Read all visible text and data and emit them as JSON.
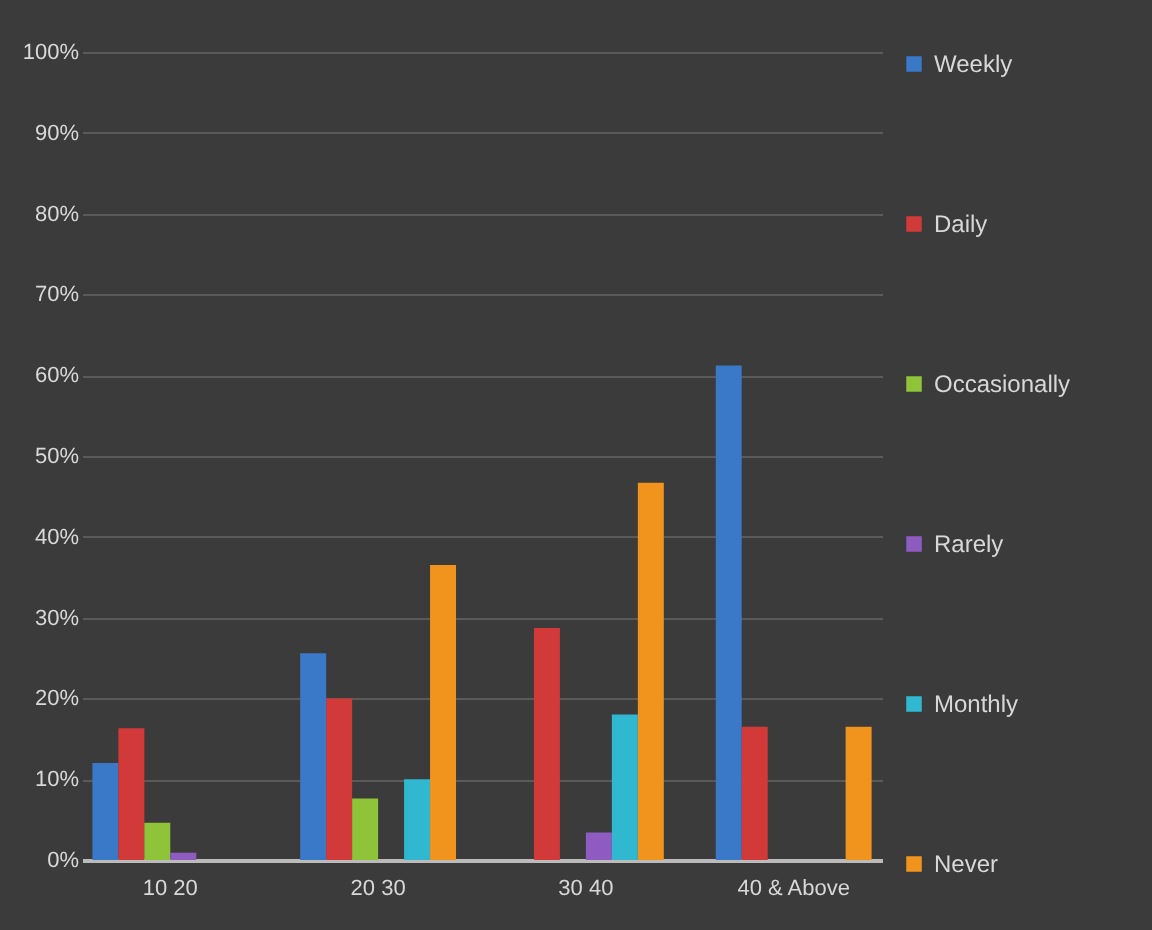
{
  "chart_data": {
    "type": "bar",
    "categories": [
      "10 20",
      "20 30",
      "30 40",
      "40 & Above"
    ],
    "series": [
      {
        "name": "Weekly",
        "color": "#3a78c8",
        "values": [
          12,
          25.6,
          null,
          61.2
        ]
      },
      {
        "name": "Daily",
        "color": "#d23a3a",
        "values": [
          16.3,
          20,
          28.7,
          16.5
        ]
      },
      {
        "name": "Occasionally",
        "color": "#8fc43a",
        "values": [
          4.6,
          7.6,
          null,
          null
        ]
      },
      {
        "name": "Rarely",
        "color": "#8e5cc0",
        "values": [
          0.9,
          null,
          3.4,
          null
        ]
      },
      {
        "name": "Monthly",
        "color": "#2fb8d0",
        "values": [
          null,
          10,
          18,
          null
        ]
      },
      {
        "name": "Never",
        "color": "#f0941e",
        "values": [
          null,
          36.5,
          46.7,
          16.5
        ]
      }
    ],
    "ylim": [
      0,
      100
    ],
    "yticks": [
      {
        "value": 0,
        "label": "0%"
      },
      {
        "value": 10,
        "label": "10%"
      },
      {
        "value": 20,
        "label": "20%"
      },
      {
        "value": 30,
        "label": "30%"
      },
      {
        "value": 40,
        "label": "40%"
      },
      {
        "value": 50,
        "label": "50%"
      },
      {
        "value": 60,
        "label": "60%"
      },
      {
        "value": 70,
        "label": "70%"
      },
      {
        "value": 80,
        "label": "80%"
      },
      {
        "value": 90,
        "label": "90%"
      },
      {
        "value": 100,
        "label": "100%"
      }
    ],
    "grid": "y",
    "legend": "right"
  }
}
